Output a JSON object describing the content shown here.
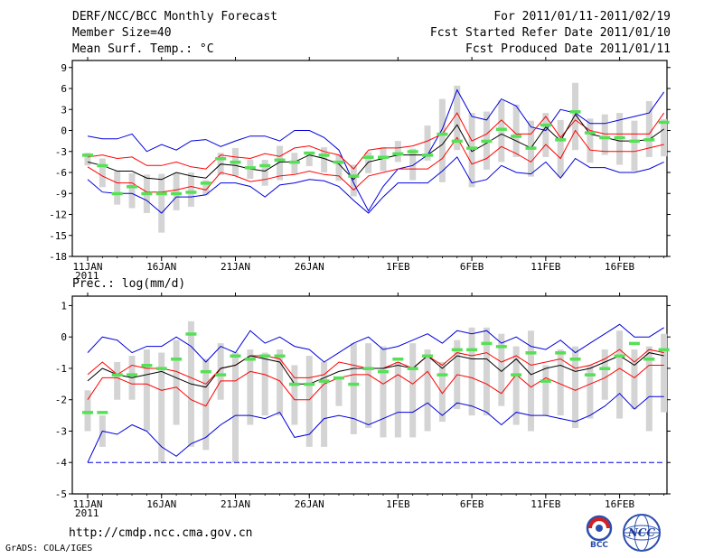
{
  "header": {
    "title": "DERF/NCC/BCC Monthly Forecast",
    "member_size": "Member Size=40",
    "variable": "Mean Surf. Temp.: °C",
    "period": "For 2011/01/11-2011/02/19",
    "fcst_started": "Fcst Started Refer Date 2011/01/10",
    "fcst_produced": "Fcst Produced Date 2011/01/11"
  },
  "footer": {
    "url": "http://cmdp.ncc.cma.gov.cn",
    "credit": "GrADS: COLA/IGES",
    "bcc_logo": "BCC",
    "ncc_logo": "NCC"
  },
  "colors": {
    "box": "#d4d4d4",
    "median": "#55e055",
    "mean": "#000000",
    "spread": "#ff0000",
    "extreme": "#0000dd",
    "baseline": "#0000dd"
  },
  "chart_data": [
    {
      "type": "box-and-line",
      "name": "temperature",
      "ylabel": "Mean Surf. Temp.: °C",
      "ylim": [
        -18,
        10
      ],
      "yticks": [
        9,
        6,
        3,
        0,
        -3,
        -6,
        -9,
        -12,
        -15,
        -18
      ],
      "ytick_labels": [
        "9",
        "6",
        "3",
        "0",
        "-3",
        "-6",
        "-9",
        "-12",
        "-15",
        "-18"
      ],
      "day_range": [
        0,
        40
      ],
      "xticks": [
        {
          "day": 0,
          "label": "11JAN",
          "sub": "2011"
        },
        {
          "day": 5,
          "label": "16JAN"
        },
        {
          "day": 10,
          "label": "21JAN"
        },
        {
          "day": 15,
          "label": "26JAN"
        },
        {
          "day": 21,
          "label": "1FEB"
        },
        {
          "day": 26,
          "label": "6FEB"
        },
        {
          "day": 31,
          "label": "11FEB"
        },
        {
          "day": 36,
          "label": "16FEB"
        }
      ],
      "max": [
        -0.8,
        -1.2,
        -1.2,
        -0.5,
        -3,
        -2,
        -2.8,
        -1.5,
        -1.3,
        -2.3,
        -1.5,
        -0.8,
        -0.8,
        -1.5,
        0,
        0,
        -1,
        -2.8,
        -7.5,
        -11.5,
        -8,
        -5.5,
        -5,
        -3.5,
        0.2,
        5.8,
        2,
        1.5,
        4.5,
        3.5,
        0.5,
        0,
        3,
        2.5,
        1,
        1,
        1.5,
        2,
        2.5,
        5.5
      ],
      "plus_sd": [
        -3.8,
        -3.5,
        -4,
        -3.8,
        -5,
        -5,
        -4.5,
        -5.2,
        -5.5,
        -3.5,
        -3.8,
        -4,
        -3.3,
        -3.7,
        -2.5,
        -2.2,
        -3,
        -3.5,
        -5.5,
        -2.8,
        -2.5,
        -2.5,
        -2.2,
        -1.5,
        -0.5,
        2.5,
        -1.5,
        -0.5,
        1.5,
        -0.5,
        -0.5,
        2,
        -1,
        1.5,
        0,
        -0.5,
        -0.5,
        -0.5,
        -0.5,
        2.5
      ],
      "mean": [
        -4.5,
        -5,
        -5.8,
        -5.8,
        -6.8,
        -7,
        -6,
        -6.5,
        -6.8,
        -4.8,
        -5,
        -5.5,
        -5.8,
        -4.5,
        -4.5,
        -3.5,
        -4,
        -4.8,
        -7,
        -4.5,
        -4,
        -3.5,
        -3.5,
        -3.5,
        -2,
        0.8,
        -3,
        -1.8,
        -0.5,
        -1.5,
        -2.5,
        0.5,
        -1.5,
        2.3,
        -0.5,
        -1,
        -1.5,
        -1.5,
        -1.3,
        0.2
      ],
      "minus_sd": [
        -5.2,
        -6.5,
        -7.5,
        -7.5,
        -8.8,
        -8.8,
        -8.5,
        -8,
        -8.5,
        -6,
        -6.5,
        -7.3,
        -7,
        -6.5,
        -6.3,
        -5.8,
        -6.3,
        -6.5,
        -8.5,
        -6.5,
        -6,
        -5.5,
        -5.5,
        -5.5,
        -4,
        -1,
        -4.8,
        -4,
        -2.3,
        -3.3,
        -4.5,
        -2,
        -4,
        0,
        -2.8,
        -3,
        -3,
        -3,
        -2.5,
        -2
      ],
      "min": [
        -7,
        -8.8,
        -9,
        -9,
        -10,
        -11.8,
        -9.5,
        -9.5,
        -9.2,
        -7.5,
        -7.5,
        -8,
        -9.5,
        -7.8,
        -7.5,
        -7,
        -7.2,
        -8,
        -10,
        -11.8,
        -9.5,
        -7.5,
        -7.5,
        -7.5,
        -5.8,
        -3.8,
        -7.5,
        -7,
        -5,
        -6,
        -6.2,
        -4.5,
        -6.8,
        -4,
        -5.3,
        -5.3,
        -6,
        -6,
        -5.5,
        -4.5
      ],
      "box_high": [
        -3.2,
        -4.0,
        -5.8,
        -6.1,
        -6.3,
        -6.2,
        -6.1,
        -6.0,
        -7.1,
        -3.2,
        -2.5,
        -4.2,
        -4.2,
        -2.2,
        -3.2,
        -3.5,
        -2.4,
        -3.5,
        -4.9,
        -3.1,
        -2.4,
        -1.5,
        -2.6,
        0.7,
        4.5,
        6.4,
        2.5,
        2.7,
        4.3,
        3.7,
        1.4,
        2.5,
        1.5,
        6.8,
        1.7,
        2.3,
        2.5,
        1.4,
        4.2,
        1.6
      ],
      "box_low": [
        -5.0,
        -8.1,
        -10.6,
        -11.1,
        -11.8,
        -14.6,
        -11.4,
        -10.9,
        -9.2,
        -6.4,
        -6.5,
        -6.9,
        -7.9,
        -7.1,
        -6.2,
        -5.1,
        -6.0,
        -7.2,
        -9.4,
        -6.1,
        -5.8,
        -4.5,
        -7.1,
        -4.3,
        -7.4,
        -2.8,
        -8.1,
        -5.6,
        -4.5,
        -3.8,
        -6.6,
        -3.8,
        -6.6,
        -2.8,
        -4.6,
        -3.5,
        -4.9,
        -5.8,
        -3.8,
        -3.7
      ],
      "median": [
        -3.5,
        -5,
        -9,
        -8,
        -9,
        -9,
        -9,
        -8.8,
        -7.5,
        -4,
        -4.5,
        -5.3,
        -5,
        -4.2,
        -4.5,
        -3.2,
        -3.5,
        -4.5,
        -6.5,
        -3.8,
        -3.8,
        -3.3,
        -3,
        -3.5,
        -0.5,
        -1.5,
        -2.5,
        -1.5,
        0.2,
        -0.8,
        -2.5,
        0.8,
        -1.3,
        2.7,
        -0.3,
        -1,
        -1,
        -1.5,
        -1.3,
        1.2
      ],
      "baseline": null
    },
    {
      "type": "box-and-line",
      "name": "precipitation",
      "ylabel": "Prec.: log(mm/d)",
      "ylim": [
        -5,
        1.3
      ],
      "yticks": [
        1,
        0,
        -1,
        -2,
        -3,
        -4,
        -5
      ],
      "ytick_labels": [
        "1",
        "0",
        "-1",
        "-2",
        "-3",
        "-4",
        "-5"
      ],
      "day_range": [
        0,
        40
      ],
      "xticks": [
        {
          "day": 0,
          "label": "11JAN",
          "sub": "2011"
        },
        {
          "day": 5,
          "label": "16JAN"
        },
        {
          "day": 10,
          "label": "21JAN"
        },
        {
          "day": 15,
          "label": "26JAN"
        },
        {
          "day": 21,
          "label": "1FEB"
        },
        {
          "day": 26,
          "label": "6FEB"
        },
        {
          "day": 31,
          "label": "11FEB"
        },
        {
          "day": 36,
          "label": "16FEB"
        }
      ],
      "max": [
        -0.5,
        0,
        -0.1,
        -0.5,
        -0.3,
        -0.3,
        0,
        -0.3,
        -0.8,
        -0.3,
        -0.5,
        0.2,
        -0.2,
        0,
        -0.3,
        -0.4,
        -0.8,
        -0.5,
        -0.2,
        0,
        -0.4,
        -0.3,
        -0.1,
        0.1,
        -0.2,
        0.2,
        0.1,
        0.2,
        -0.2,
        0,
        -0.3,
        -0.4,
        -0.1,
        -0.5,
        -0.2,
        0.1,
        0.4,
        0,
        0,
        0.3
      ],
      "plus_sd": [
        -1.2,
        -0.8,
        -1.2,
        -0.9,
        -1,
        -1,
        -1.1,
        -1.3,
        -1.5,
        -1,
        -0.9,
        -0.6,
        -0.6,
        -0.7,
        -1.3,
        -1.3,
        -1.2,
        -0.8,
        -0.9,
        -1,
        -1,
        -0.8,
        -1,
        -0.6,
        -0.9,
        -0.5,
        -0.6,
        -0.5,
        -0.8,
        -0.6,
        -0.9,
        -0.8,
        -0.7,
        -1,
        -0.9,
        -0.7,
        -0.4,
        -0.8,
        -0.4,
        -0.5
      ],
      "mean": [
        -1.4,
        -1,
        -1.2,
        -1.3,
        -1.2,
        -1.1,
        -1.3,
        -1.5,
        -1.6,
        -1,
        -0.9,
        -0.6,
        -0.7,
        -0.8,
        -1.5,
        -1.5,
        -1.3,
        -1.1,
        -1,
        -1,
        -1,
        -0.9,
        -1,
        -0.6,
        -1,
        -0.6,
        -0.7,
        -0.7,
        -1.1,
        -0.7,
        -1.2,
        -1,
        -0.9,
        -1.1,
        -1,
        -0.8,
        -0.6,
        -0.9,
        -0.5,
        -0.6
      ],
      "minus_sd": [
        -2,
        -1.3,
        -1.3,
        -1.5,
        -1.5,
        -1.7,
        -1.6,
        -2,
        -2.2,
        -1.4,
        -1.4,
        -1.1,
        -1.2,
        -1.4,
        -2,
        -2,
        -1.5,
        -1.3,
        -1.2,
        -1.2,
        -1.5,
        -1.2,
        -1.5,
        -1.1,
        -1.8,
        -1.2,
        -1.3,
        -1.5,
        -1.8,
        -1.2,
        -1.6,
        -1.3,
        -1.5,
        -1.7,
        -1.5,
        -1.3,
        -1,
        -1.3,
        -0.9,
        -0.9
      ],
      "min": [
        -4,
        -3,
        -3.1,
        -2.8,
        -3,
        -3.5,
        -3.8,
        -3.4,
        -3.2,
        -2.8,
        -2.5,
        -2.5,
        -2.6,
        -2.4,
        -3.2,
        -3.1,
        -2.6,
        -2.5,
        -2.6,
        -2.8,
        -2.6,
        -2.4,
        -2.4,
        -2.1,
        -2.5,
        -2.1,
        -2.2,
        -2.4,
        -2.8,
        -2.4,
        -2.5,
        -2.5,
        -2.6,
        -2.7,
        -2.5,
        -2.2,
        -1.8,
        -2.3,
        -1.9,
        -1.9
      ],
      "box_high": [
        -1.7,
        -2.5,
        -0.8,
        -0.6,
        -0.4,
        -0.5,
        -0.1,
        0.5,
        -0.7,
        -0.2,
        -0.5,
        -0.4,
        -0.5,
        -0.4,
        -0.9,
        -0.6,
        -0.8,
        -1.3,
        -0.2,
        -0.2,
        -0.3,
        -0.8,
        -0.2,
        -0.4,
        -0.8,
        -0.1,
        0.3,
        0.3,
        0.1,
        -0.3,
        0.2,
        -0.9,
        -0.4,
        -0.3,
        -0.9,
        -0.4,
        0.2,
        -0.4,
        -0.3,
        0.1
      ],
      "box_low": [
        -3.0,
        -3.5,
        -2.0,
        -2.0,
        -3.0,
        -4.0,
        -2.8,
        -3.5,
        -3.6,
        -2.0,
        -4.0,
        -2.8,
        -2.5,
        -2.5,
        -2.8,
        -3.5,
        -3.5,
        -2.2,
        -3.1,
        -2.9,
        -3.2,
        -3.2,
        -3.2,
        -3.0,
        -2.7,
        -2.3,
        -2.5,
        -2.5,
        -2.2,
        -2.8,
        -3.0,
        -2.5,
        -2.5,
        -2.9,
        -2.6,
        -2.0,
        -2.6,
        -2.3,
        -3.0,
        -2.4
      ],
      "median": [
        -2.4,
        -2.4,
        -1.2,
        -1.2,
        -0.9,
        -1,
        -0.7,
        0.1,
        -1.1,
        -1.2,
        -0.6,
        -0.7,
        -0.6,
        -0.6,
        -1.5,
        -1.5,
        -1.4,
        -1.3,
        -1.5,
        -1,
        -1.1,
        -0.7,
        -1,
        -0.6,
        -1.2,
        -0.4,
        -0.4,
        -0.2,
        -0.3,
        -1.2,
        -0.5,
        -1.4,
        -0.5,
        -0.7,
        -1.2,
        -1,
        -0.6,
        -0.2,
        -0.7,
        -0.4
      ],
      "baseline": -4
    }
  ]
}
